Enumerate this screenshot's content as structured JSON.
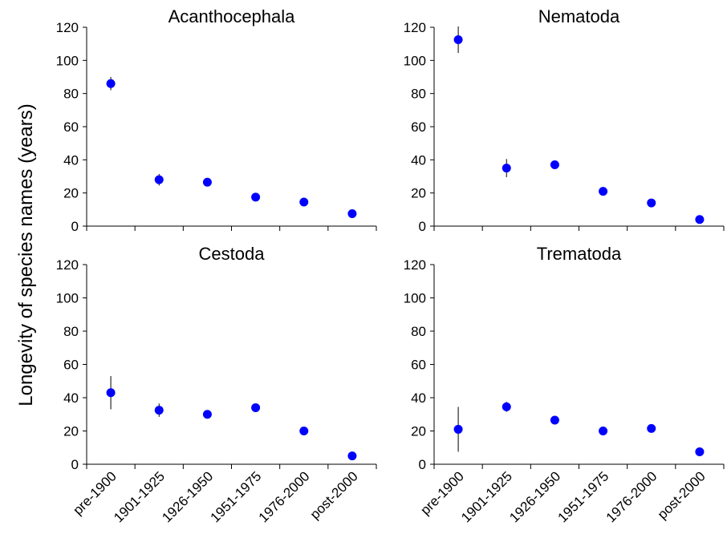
{
  "ylabel": "Longevity of species names (years)",
  "categories": [
    "pre-1900",
    "1901-1925",
    "1926-1950",
    "1951-1975",
    "1976-2000",
    "post-2000"
  ],
  "colors": {
    "point": "#0000ff",
    "errorbar": "#000000",
    "axis": "#000000"
  },
  "chart_data": [
    {
      "type": "scatter",
      "title": "Acanthocephala",
      "ylim": [
        0,
        120
      ],
      "yticks": [
        0,
        20,
        40,
        60,
        80,
        100,
        120
      ],
      "categories": [
        "pre-1900",
        "1901-1925",
        "1926-1950",
        "1951-1975",
        "1976-2000",
        "post-2000"
      ],
      "values": [
        86,
        28,
        26.5,
        17.5,
        14.5,
        7.5
      ],
      "errors": [
        4,
        3.5,
        1.5,
        1,
        1,
        1
      ]
    },
    {
      "type": "scatter",
      "title": "Nematoda",
      "ylim": [
        0,
        120
      ],
      "yticks": [
        0,
        20,
        40,
        60,
        80,
        100,
        120
      ],
      "categories": [
        "pre-1900",
        "1901-1925",
        "1926-1950",
        "1951-1975",
        "1976-2000",
        "post-2000"
      ],
      "values": [
        112.5,
        35,
        37,
        21,
        14,
        4
      ],
      "errors": [
        8,
        5.5,
        1,
        1,
        1,
        0.5
      ]
    },
    {
      "type": "scatter",
      "title": "Cestoda",
      "ylim": [
        0,
        120
      ],
      "yticks": [
        0,
        20,
        40,
        60,
        80,
        100,
        120
      ],
      "categories": [
        "pre-1900",
        "1901-1925",
        "1926-1950",
        "1951-1975",
        "1976-2000",
        "post-2000"
      ],
      "values": [
        43,
        32.5,
        30,
        34,
        20,
        5
      ],
      "errors": [
        10,
        4,
        1,
        1,
        1,
        0.5
      ]
    },
    {
      "type": "scatter",
      "title": "Trematoda",
      "ylim": [
        0,
        120
      ],
      "yticks": [
        0,
        20,
        40,
        60,
        80,
        100,
        120
      ],
      "categories": [
        "pre-1900",
        "1901-1925",
        "1926-1950",
        "1951-1975",
        "1976-2000",
        "post-2000"
      ],
      "values": [
        21,
        34.5,
        26.5,
        20,
        21.5,
        7.5
      ],
      "errors": [
        13.5,
        3,
        1,
        1,
        1,
        0.5
      ]
    }
  ]
}
